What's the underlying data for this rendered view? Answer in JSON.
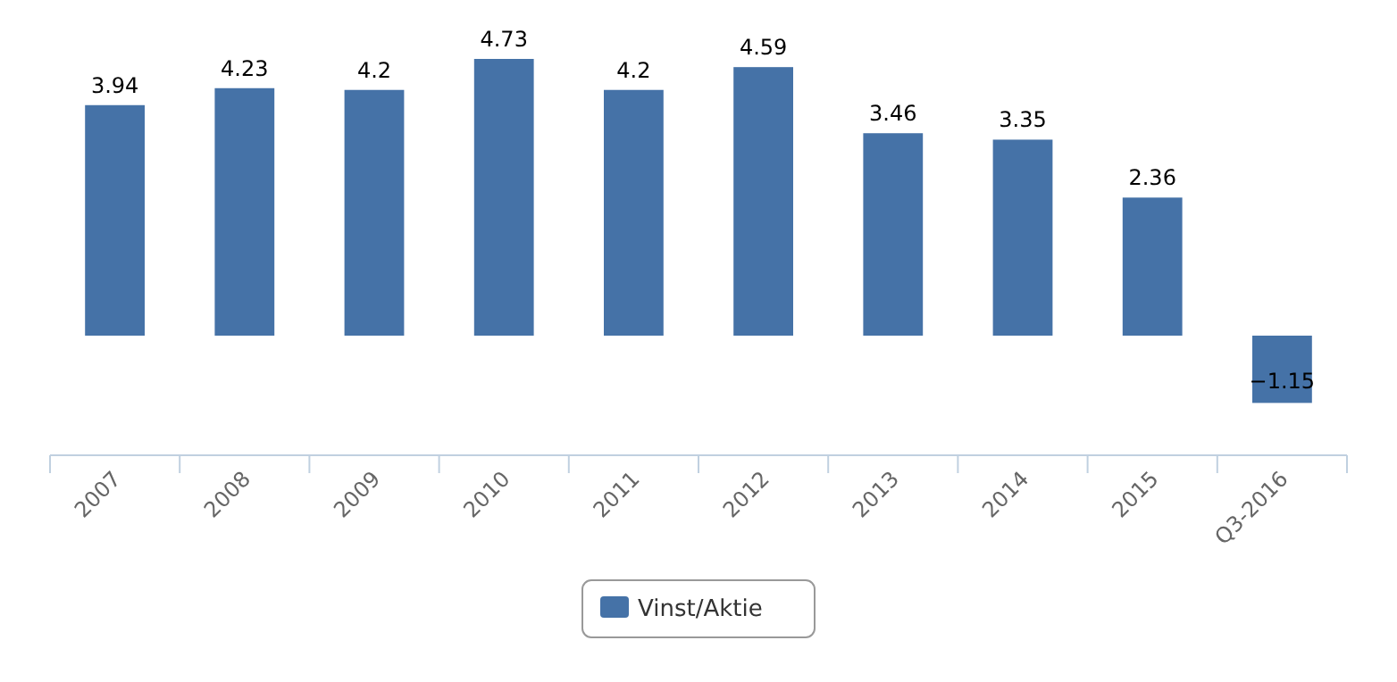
{
  "chart_data": {
    "type": "bar",
    "categories": [
      "2007",
      "2008",
      "2009",
      "2010",
      "2011",
      "2012",
      "2013",
      "2014",
      "2015",
      "Q3-2016"
    ],
    "series": [
      {
        "name": "Vinst/Aktie",
        "color": "#4572a7",
        "values": [
          3.94,
          4.23,
          4.2,
          4.73,
          4.2,
          4.59,
          3.46,
          3.35,
          2.36,
          -1.15
        ]
      }
    ],
    "data_labels": true,
    "legend": "bottom",
    "tick_labels": "x"
  }
}
